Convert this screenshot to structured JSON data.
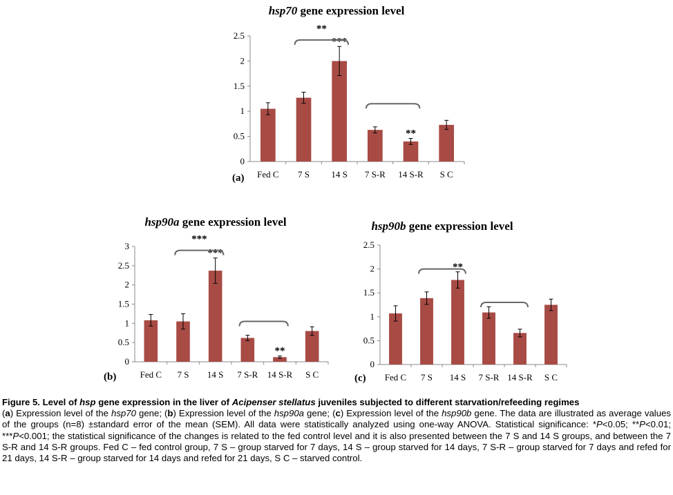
{
  "chart_data": [
    {
      "id": "a",
      "type": "bar",
      "title_gene": "hsp70",
      "title_rest": " gene expression level",
      "panel": "(a)",
      "categories": [
        "Fed C",
        "7 S",
        "14 S",
        "7 S-R",
        "14 S-R",
        "S C"
      ],
      "values": [
        1.05,
        1.27,
        2.0,
        0.63,
        0.4,
        0.73
      ],
      "errors": [
        0.12,
        0.11,
        0.29,
        0.06,
        0.06,
        0.09
      ],
      "ylim": [
        0,
        2.5
      ],
      "yticks": [
        "0",
        "0.5",
        "1",
        "1.5",
        "2",
        "2.5"
      ],
      "ystep": 0.5,
      "bar_labels": [
        "",
        "",
        "***",
        "",
        "**",
        ""
      ],
      "brackets": [
        {
          "from": 1,
          "to": 2,
          "level": 2.42,
          "label": "**"
        },
        {
          "from": 3,
          "to": 4,
          "level": 1.15,
          "label": ""
        }
      ],
      "color": "#a84b45"
    },
    {
      "id": "b",
      "type": "bar",
      "title_gene": "hsp90a",
      "title_rest": " gene expression level",
      "panel": "(b)",
      "categories": [
        "Fed C",
        "7 S",
        "14 S",
        "7 S-R",
        "14 S-R",
        "S C"
      ],
      "values": [
        1.08,
        1.05,
        2.37,
        0.62,
        0.12,
        0.8
      ],
      "errors": [
        0.15,
        0.2,
        0.33,
        0.07,
        0.03,
        0.11
      ],
      "ylim": [
        0,
        3
      ],
      "yticks": [
        "0",
        "0.5",
        "1",
        "1.5",
        "2",
        "2.5",
        "3"
      ],
      "ystep": 0.5,
      "bar_labels": [
        "",
        "",
        "***",
        "",
        "**",
        ""
      ],
      "brackets": [
        {
          "from": 1,
          "to": 2,
          "level": 2.9,
          "label": "***"
        },
        {
          "from": 3,
          "to": 4,
          "level": 1.05,
          "label": ""
        }
      ],
      "color": "#a84b45"
    },
    {
      "id": "c",
      "type": "bar",
      "title_gene": "hsp90b",
      "title_rest": " gene expression level",
      "panel": "(c)",
      "categories": [
        "Fed C",
        "7 S",
        "14 S",
        "7 S-R",
        "14 S-R",
        "S C"
      ],
      "values": [
        1.07,
        1.39,
        1.77,
        1.09,
        0.66,
        1.25
      ],
      "errors": [
        0.16,
        0.13,
        0.17,
        0.12,
        0.08,
        0.12
      ],
      "ylim": [
        0,
        2.5
      ],
      "yticks": [
        "0",
        "0.5",
        "1",
        "1.5",
        "2",
        "2.5"
      ],
      "ystep": 0.5,
      "bar_labels": [
        "",
        "",
        "**",
        "",
        "",
        ""
      ],
      "brackets": [
        {
          "from": 1,
          "to": 2,
          "level": 2.0,
          "label": ""
        },
        {
          "from": 3,
          "to": 4,
          "level": 1.3,
          "label": ""
        }
      ],
      "color": "#a84b45"
    }
  ],
  "caption": [
    {
      "t": "Figure 5. Level of ",
      "s": "b"
    },
    {
      "t": "hsp",
      "s": "bi"
    },
    {
      "t": " gene expression in the liver of ",
      "s": "b"
    },
    {
      "t": "Acipenser stellatus",
      "s": "bi"
    },
    {
      "t": " juveniles subjected to different starvation/refeeding regimes",
      "s": "b"
    },
    {
      "t": "(",
      "s": ""
    },
    {
      "t": "a",
      "s": "b"
    },
    {
      "t": ") Expression level of the ",
      "s": ""
    },
    {
      "t": "hsp70",
      "s": "i"
    },
    {
      "t": " gene; (",
      "s": ""
    },
    {
      "t": "b",
      "s": "b"
    },
    {
      "t": ") Expression level of the ",
      "s": ""
    },
    {
      "t": "hsp90a",
      "s": "i"
    },
    {
      "t": " gene; (",
      "s": ""
    },
    {
      "t": "c",
      "s": "b"
    },
    {
      "t": ") Expression level of the ",
      "s": ""
    },
    {
      "t": "hsp90b",
      "s": "i"
    },
    {
      "t": " gene. The data are illustrated as average values of the groups (n=8) ±standard error of the mean (SEM). All data were statistically analyzed using one-way ANOVA. Statistical significance: *",
      "s": ""
    },
    {
      "t": "P",
      "s": "i"
    },
    {
      "t": "<0.05; **",
      "s": ""
    },
    {
      "t": "P",
      "s": "i"
    },
    {
      "t": "<0.01; ***",
      "s": ""
    },
    {
      "t": "P",
      "s": "i"
    },
    {
      "t": "<0.001; the statistical significance of the changes is related to the fed control level and it is also presented between the 7 S and 14 S groups, and between the 7 S-R and 14 S-R groups. Fed C – fed control group, 7 S – group starved for 7 days, 14 S – group starved for 14 days, 7 S-R – group starved for 7 days and refed for 21 days, 14 S-R – group starved for 14 days and refed for 21 days, S C – starved control.",
      "s": ""
    }
  ]
}
